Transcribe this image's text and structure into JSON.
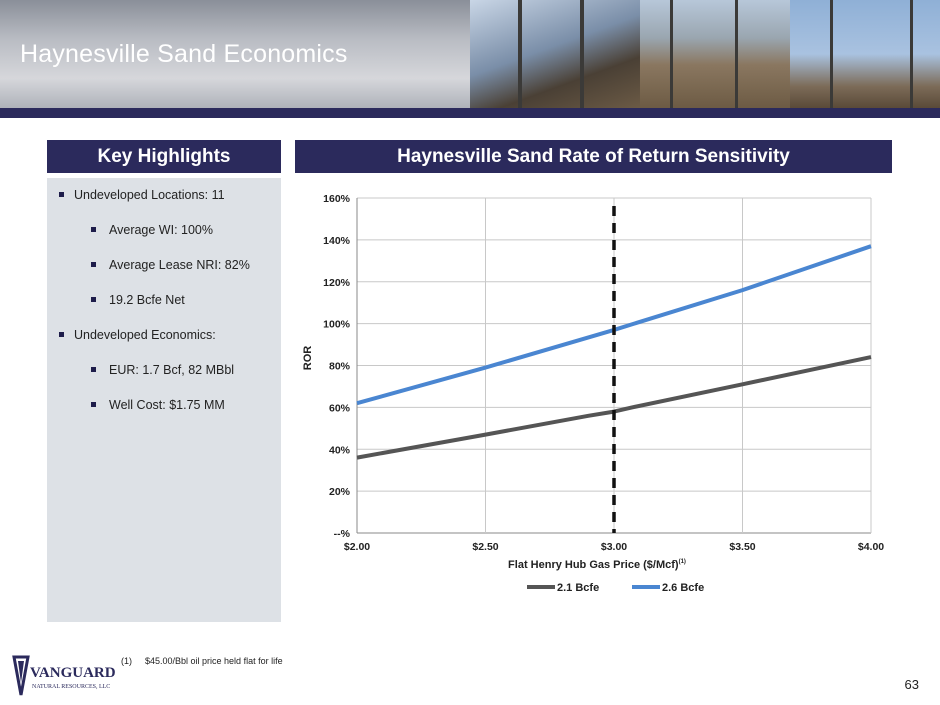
{
  "slide": {
    "title": "Haynesville Sand Economics",
    "page_number": "63"
  },
  "key_highlights": {
    "header": "Key Highlights",
    "items": [
      {
        "level": 1,
        "text": "Undeveloped Locations: 11"
      },
      {
        "level": 2,
        "text": "Average WI: 100%"
      },
      {
        "level": 2,
        "text": "Average Lease NRI: 82%"
      },
      {
        "level": 2,
        "text": "19.2 Bcfe Net"
      },
      {
        "level": 1,
        "text": "Undeveloped Economics:"
      },
      {
        "level": 2,
        "text": "EUR: 1.7 Bcf, 82 MBbl"
      },
      {
        "level": 2,
        "text": "Well Cost: $1.75 MM"
      }
    ]
  },
  "footnote": {
    "number": "(1)",
    "text": "$45.00/Bbl oil price held flat for life"
  },
  "logo": {
    "name": "VANGUARD",
    "sub": "NATURAL RESOURCES, LLC"
  },
  "colors": {
    "navy": "#2b2a5c",
    "series_dark": "#555555",
    "series_blue": "#4a86d1",
    "panel": "#dde1e6"
  },
  "chart_data": {
    "type": "line",
    "title": "Haynesville Sand Rate of Return Sensitivity",
    "xlabel": "Flat Henry Hub Gas Price ($/Mcf)",
    "xlabel_superscript": "(1)",
    "ylabel": "ROR",
    "x_tick_labels": [
      "$2.00",
      "$2.50",
      "$3.00",
      "$3.50",
      "$4.00"
    ],
    "xlim": [
      2.0,
      4.0
    ],
    "y_tick_labels": [
      "--%",
      "20%",
      "40%",
      "60%",
      "80%",
      "100%",
      "120%",
      "140%",
      "160%"
    ],
    "ylim": [
      0,
      160
    ],
    "grid": "vertical and horizontal",
    "reference_line": {
      "x": 3.0,
      "style": "dashed"
    },
    "series": [
      {
        "name": "2.1 Bcfe",
        "color": "#555555",
        "x": [
          2.0,
          2.5,
          2.9,
          3.0,
          3.07,
          3.5,
          4.0
        ],
        "y": [
          36,
          47,
          56,
          58,
          60,
          71,
          84
        ]
      },
      {
        "name": "2.6 Bcfe",
        "color": "#4a86d1",
        "x": [
          2.0,
          2.5,
          3.0,
          3.5,
          4.0
        ],
        "y": [
          62,
          79,
          97,
          116,
          137
        ]
      }
    ],
    "legend_position": "bottom"
  }
}
